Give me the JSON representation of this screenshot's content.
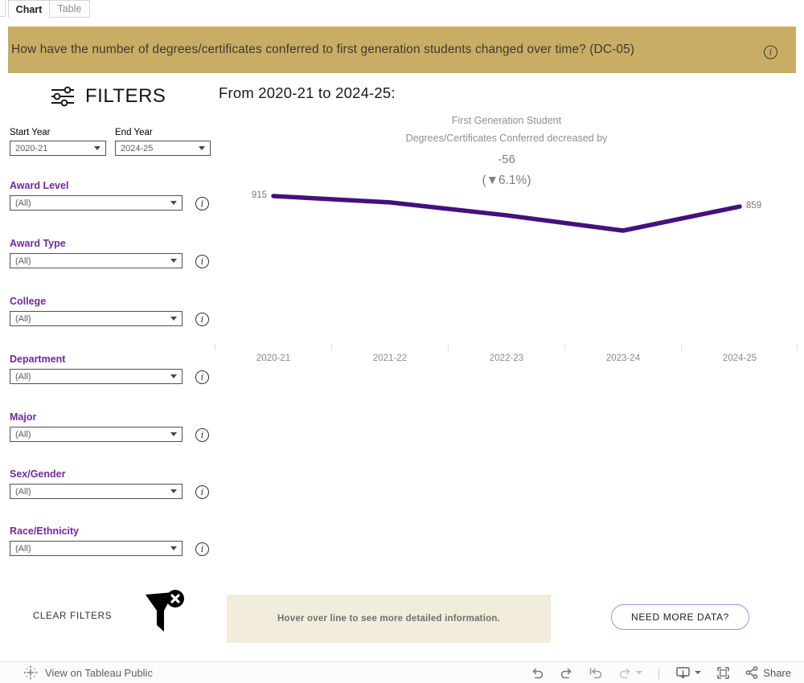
{
  "tabs": [
    {
      "label": "Chart",
      "active": true
    },
    {
      "label": "Table",
      "active": false
    }
  ],
  "banner": {
    "title": "How have the number of degrees/certificates conferred to first generation students changed over time? (DC-05)"
  },
  "icons": {
    "info": "i"
  },
  "filters": {
    "heading": "FILTERS",
    "year_filters": [
      {
        "label": "Start Year",
        "value": "2020-21"
      },
      {
        "label": "End Year",
        "value": "2024-25"
      }
    ],
    "items": [
      {
        "label": "Award Level",
        "value": "(All)"
      },
      {
        "label": "Award Type",
        "value": "(All)"
      },
      {
        "label": "College",
        "value": "(All)"
      },
      {
        "label": "Department",
        "value": "(All)"
      },
      {
        "label": "Major",
        "value": "(All)"
      },
      {
        "label": "Sex/Gender",
        "value": "(All)"
      },
      {
        "label": "Race/Ethnicity",
        "value": "(All)"
      }
    ],
    "clear_label": "CLEAR FILTERS"
  },
  "main": {
    "heading": "From 2020-21 to 2024-25:",
    "annotation": {
      "line1": "First Generation Student",
      "line2": "Degrees/Certificates Conferred decreased by",
      "value": "-56",
      "percent": "(▼6.1%)"
    },
    "hover_note": "Hover over line to see more detailed information.",
    "need_more_data_label": "NEED MORE DATA?"
  },
  "chart_data": {
    "type": "line",
    "series_name": "First Generation Student Degrees/Certificates Conferred",
    "categories": [
      "2020-21",
      "2021-22",
      "2022-23",
      "2023-24",
      "2024-25"
    ],
    "values": [
      915,
      881,
      812,
      730,
      859
    ],
    "labeled_points": {
      "2020-21": 915,
      "2024-25": 859
    },
    "change": -56,
    "change_percent": -6.1,
    "line_color": "#45107e",
    "grid": false,
    "legend": "none"
  },
  "colors": {
    "banner_bg": "#c9ad64",
    "accent_purple": "#6e2a9e",
    "line_purple": "#45107e",
    "note_beige": "#f2ecdb",
    "button_border": "#b687dd"
  },
  "footer": {
    "view_label": "View on Tableau Public",
    "share_label": "Share"
  }
}
